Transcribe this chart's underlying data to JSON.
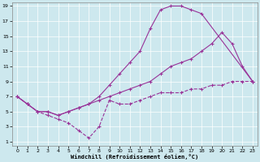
{
  "xlabel": "Windchill (Refroidissement éolien,°C)",
  "bg_color": "#cde8ee",
  "line_color": "#993399",
  "xlim": [
    -0.5,
    23.5
  ],
  "ylim": [
    0.5,
    19.5
  ],
  "xticks": [
    0,
    1,
    2,
    3,
    4,
    5,
    6,
    7,
    8,
    9,
    10,
    11,
    12,
    13,
    14,
    15,
    16,
    17,
    18,
    19,
    20,
    21,
    22,
    23
  ],
  "yticks": [
    1,
    3,
    5,
    7,
    9,
    11,
    13,
    15,
    17,
    19
  ],
  "line_top": {
    "x": [
      0,
      1,
      2,
      3,
      4,
      5,
      6,
      7,
      8,
      9,
      10,
      11,
      12,
      13,
      14,
      15,
      16,
      17,
      18,
      23
    ],
    "y": [
      7,
      6,
      5,
      5,
      4.5,
      5,
      5.5,
      6,
      7,
      8.5,
      10,
      11.5,
      13,
      16,
      18.5,
      19,
      19,
      18.5,
      18,
      9
    ]
  },
  "line_mid": {
    "x": [
      0,
      1,
      2,
      3,
      4,
      5,
      6,
      7,
      8,
      9,
      10,
      11,
      12,
      13,
      14,
      15,
      16,
      17,
      18,
      19,
      20,
      21,
      22,
      23
    ],
    "y": [
      7,
      6,
      5,
      5,
      4.5,
      5,
      5.5,
      6,
      6.5,
      7,
      7.5,
      8,
      8.5,
      9,
      10,
      11,
      11.5,
      12,
      13,
      14,
      15.5,
      14,
      11,
      9
    ]
  },
  "line_bot": {
    "x": [
      0,
      1,
      2,
      3,
      4,
      5,
      6,
      7,
      8,
      9,
      10,
      11,
      12,
      13,
      14,
      15,
      16,
      17,
      18,
      19,
      20,
      21,
      22,
      23
    ],
    "y": [
      7,
      6,
      5,
      4.5,
      4,
      3.5,
      2.5,
      1.5,
      3,
      6.5,
      6,
      6,
      6.5,
      7,
      7.5,
      7.5,
      7.5,
      8,
      8,
      8.5,
      8.5,
      9,
      9,
      9
    ]
  }
}
